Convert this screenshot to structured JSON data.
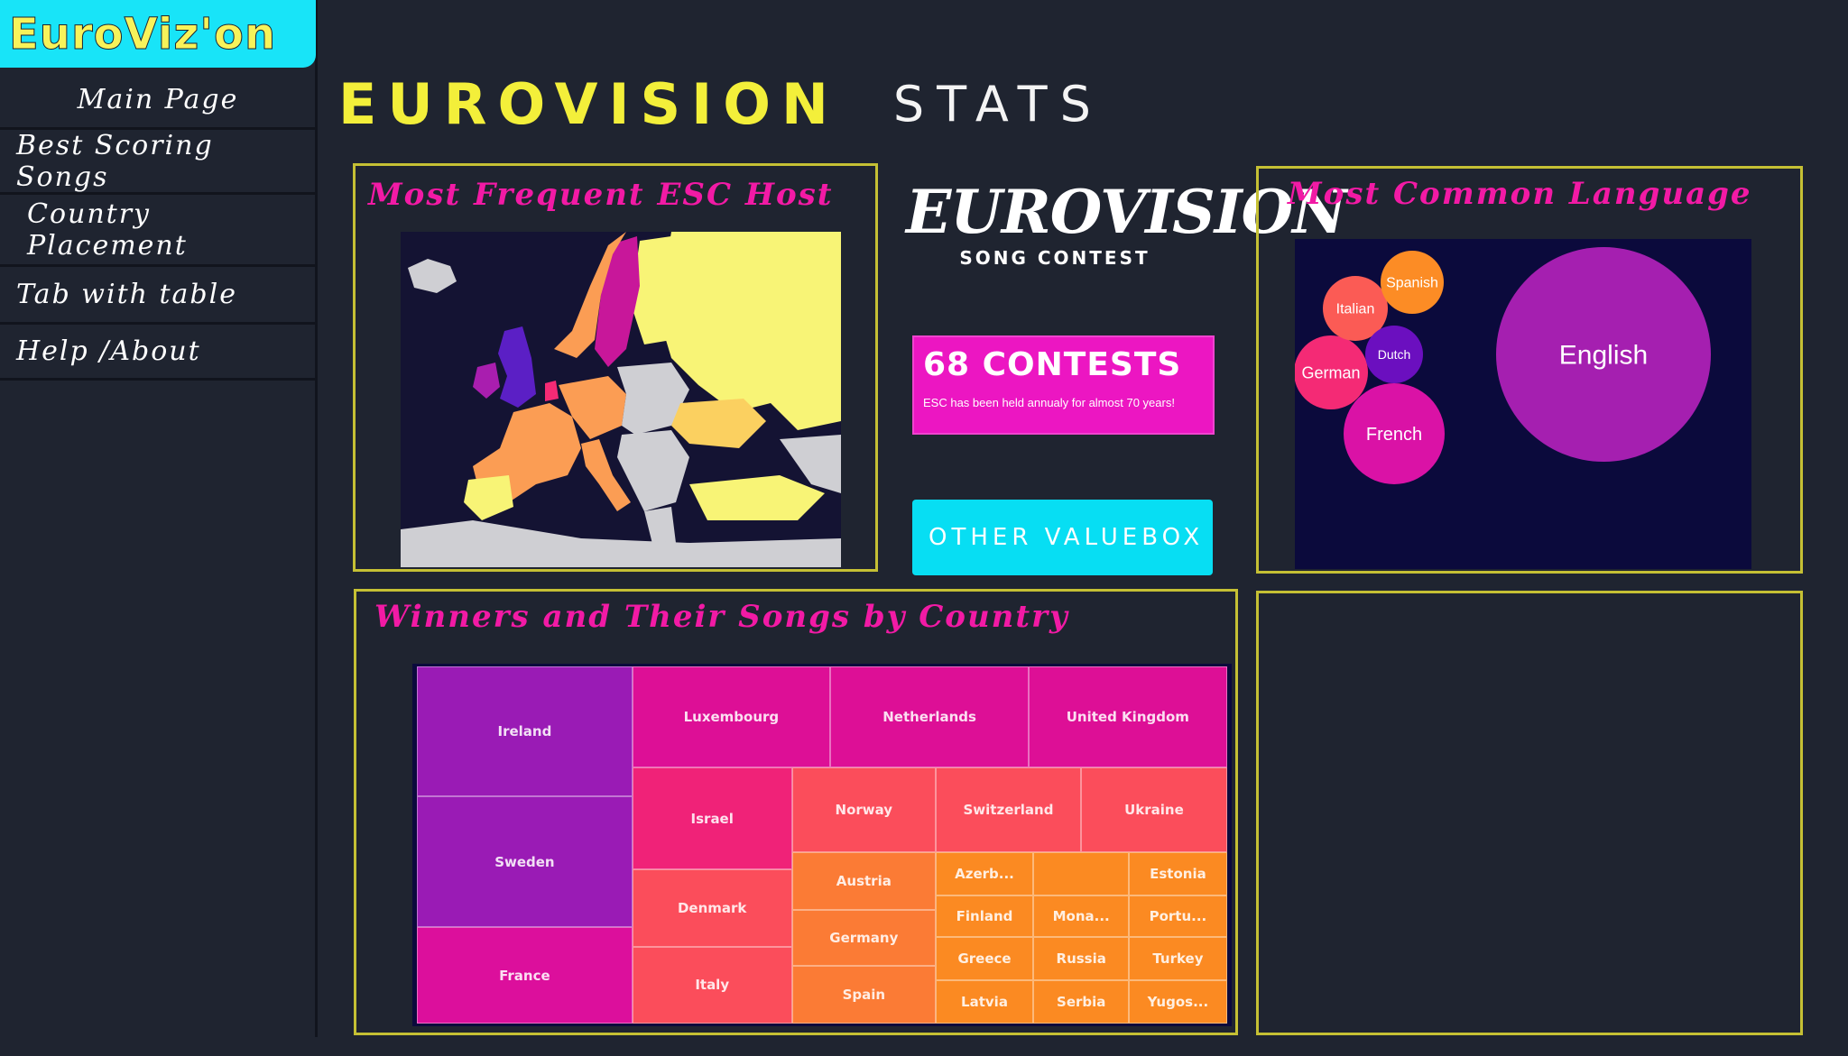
{
  "sidebar": {
    "brand": "EuroViz'on",
    "items": [
      {
        "label": "Main Page"
      },
      {
        "label": "Best Scoring Songs"
      },
      {
        "label": "Country Placement"
      },
      {
        "label": "Tab with table"
      },
      {
        "label": "Help /About"
      }
    ]
  },
  "page_title": {
    "main": "EUROVISION",
    "sub": "STATS"
  },
  "host_panel": {
    "title": "Most Frequent ESC Host"
  },
  "language_panel": {
    "title": "Most Common Language"
  },
  "winners_panel": {
    "title": "Winners and Their Songs by Country"
  },
  "logo": {
    "word": "EUROVISION",
    "sub": "SONG CONTEST"
  },
  "value_boxes": {
    "contests": {
      "value": "68 CONTESTS",
      "subtitle": "ESC has been held annualy for almost 70 years!",
      "color": "#ec16c2"
    },
    "other": {
      "label": "OTHER VALUEBOX",
      "color": "#07def3"
    }
  },
  "colors": {
    "accent_yellow": "#f3ef3a",
    "accent_pink": "#f21aa5",
    "panel_border": "#c5c034",
    "background": "#1f2430"
  },
  "chart_data": [
    {
      "type": "bubble",
      "bubbles": [
        {
          "label": "English",
          "color": "#a51fb0"
        },
        {
          "label": "French",
          "color": "#da12a6"
        },
        {
          "label": "German",
          "color": "#f42a75"
        },
        {
          "label": "Italian",
          "color": "#fb5b55"
        },
        {
          "label": "Spanish",
          "color": "#fc8c25"
        },
        {
          "label": "Dutch",
          "color": "#6b0fbf"
        }
      ]
    },
    {
      "type": "treemap",
      "cells": [
        {
          "label": "Ireland",
          "color": "#9a1bb5"
        },
        {
          "label": "Sweden",
          "color": "#9a1bb5"
        },
        {
          "label": "France",
          "color": "#dc0f9c"
        },
        {
          "label": "Luxembourg",
          "color": "#dd0f96"
        },
        {
          "label": "Netherlands",
          "color": "#dd0f96"
        },
        {
          "label": "United Kingdom",
          "color": "#dd0f96"
        },
        {
          "label": "Israel",
          "color": "#f02278"
        },
        {
          "label": "Denmark",
          "color": "#fb4d5b"
        },
        {
          "label": "Italy",
          "color": "#fb4d5b"
        },
        {
          "label": "Norway",
          "color": "#fb4d5b"
        },
        {
          "label": "Switzerland",
          "color": "#fb4d5b"
        },
        {
          "label": "Ukraine",
          "color": "#fb4d5b"
        },
        {
          "label": "Austria",
          "color": "#fb7b35"
        },
        {
          "label": "Germany",
          "color": "#fb7b35"
        },
        {
          "label": "Spain",
          "color": "#fb7b35"
        },
        {
          "label": "Azerb...",
          "color": "#fb8a22"
        },
        {
          "label": "",
          "color": "#fb8a22"
        },
        {
          "label": "Estonia",
          "color": "#fb8a22"
        },
        {
          "label": "Finland",
          "color": "#fb8a22"
        },
        {
          "label": "Mona...",
          "color": "#fb8a22"
        },
        {
          "label": "Portu...",
          "color": "#fb8a22"
        },
        {
          "label": "Greece",
          "color": "#fb8a22"
        },
        {
          "label": "Russia",
          "color": "#fb8a22"
        },
        {
          "label": "Turkey",
          "color": "#fb8a22"
        },
        {
          "label": "Latvia",
          "color": "#fb8a22"
        },
        {
          "label": "Serbia",
          "color": "#fb8a22"
        },
        {
          "label": "Yugos...",
          "color": "#fb8a22"
        }
      ]
    }
  ]
}
